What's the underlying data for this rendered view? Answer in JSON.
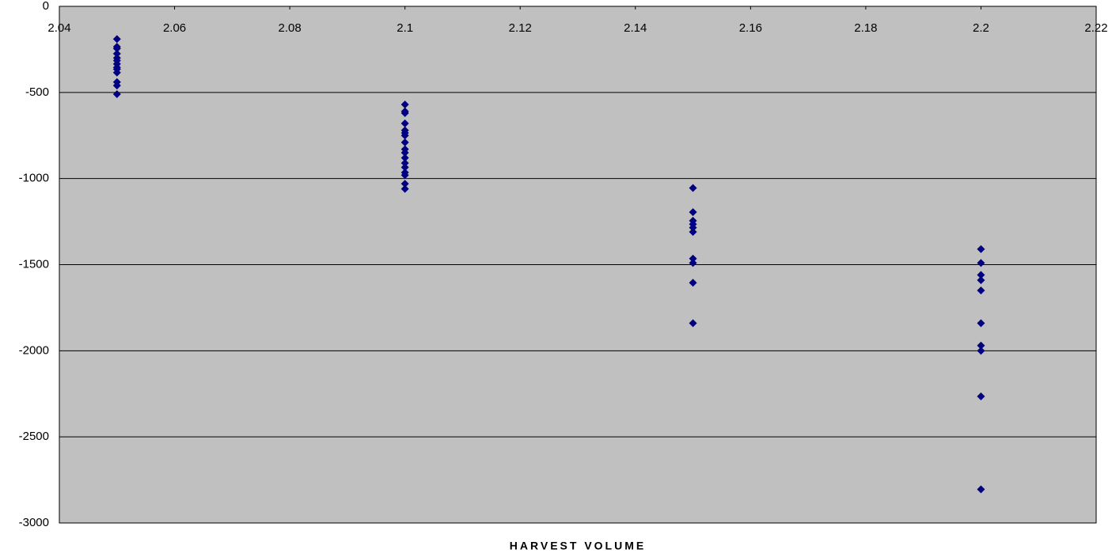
{
  "chart_data": {
    "type": "scatter",
    "x_label": "HARVEST VOLUME",
    "xlim": [
      2.04,
      2.22
    ],
    "xticks": [
      2.04,
      2.06,
      2.08,
      2.1,
      2.12,
      2.14,
      2.16,
      2.18,
      2.2,
      2.22
    ],
    "ylim": [
      -3000,
      0
    ],
    "yticks": [
      0,
      -500,
      -1000,
      -1500,
      -2000,
      -2500,
      -3000
    ],
    "grid": true,
    "background": "#c0c0c0",
    "series": [
      {
        "color": "#000080",
        "x": [
          2.05,
          2.05,
          2.05,
          2.05,
          2.05,
          2.05,
          2.05,
          2.05,
          2.05,
          2.05,
          2.05,
          2.05,
          2.05,
          2.1,
          2.1,
          2.1,
          2.1,
          2.1,
          2.1,
          2.1,
          2.1,
          2.1,
          2.1,
          2.1,
          2.1,
          2.1,
          2.1,
          2.1,
          2.1,
          2.1,
          2.15,
          2.15,
          2.15,
          2.15,
          2.15,
          2.15,
          2.15,
          2.15,
          2.15,
          2.15,
          2.2,
          2.2,
          2.2,
          2.2,
          2.2,
          2.2,
          2.2,
          2.2,
          2.2,
          2.2
        ],
        "values": [
          -190,
          -235,
          -245,
          -275,
          -300,
          -315,
          -335,
          -355,
          -365,
          -385,
          -440,
          -460,
          -510,
          -570,
          -610,
          -620,
          -680,
          -720,
          -735,
          -750,
          -790,
          -830,
          -850,
          -880,
          -910,
          -935,
          -965,
          -980,
          -1030,
          -1060,
          -1055,
          -1195,
          -1245,
          -1265,
          -1285,
          -1310,
          -1465,
          -1490,
          -1605,
          -1840,
          -1410,
          -1490,
          -1560,
          -1590,
          -1650,
          -1840,
          -1970,
          -2000,
          -2265,
          -2805
        ]
      }
    ]
  }
}
